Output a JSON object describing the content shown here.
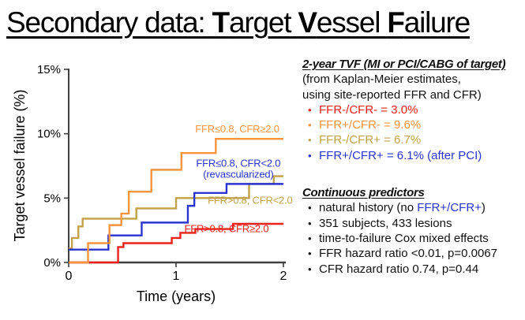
{
  "slide": {
    "title_segments": [
      {
        "text": "Secondary data: ",
        "bold": false
      },
      {
        "text": "T",
        "bold": true
      },
      {
        "text": "arget ",
        "bold": false
      },
      {
        "text": "V",
        "bold": true
      },
      {
        "text": "essel ",
        "bold": false
      },
      {
        "text": "F",
        "bold": true
      },
      {
        "text": "ailure",
        "bold": false
      }
    ]
  },
  "colors": {
    "red": "#EE2019",
    "orange": "#F7943E",
    "gold": "#C2A14B",
    "blue": "#2A34CF",
    "axis": "#3F3F3F",
    "text": "#111111"
  },
  "panel": {
    "heading1": "2-year TVF (MI or PCI/CABG of target)",
    "sub1": "(from Kaplan-Meier estimates,",
    "sub2": "using site-reported FFR and CFR)",
    "bullets1": [
      {
        "parts": [
          {
            "text": "FFR-/CFR- = 3.0%",
            "color_key": "red"
          }
        ],
        "color_key": "red"
      },
      {
        "parts": [
          {
            "text": "FFR+/CFR- = 9.6%",
            "color_key": "orange"
          }
        ],
        "color_key": "orange"
      },
      {
        "parts": [
          {
            "text": "FFR-/CFR+ = 6.7%",
            "color_key": "gold"
          }
        ],
        "color_key": "gold"
      },
      {
        "parts": [
          {
            "text": "FFR+/CFR+ = 6.1% (after PCI)",
            "color_key": "blue"
          }
        ],
        "color_key": "blue"
      }
    ],
    "heading2": "Continuous predictors",
    "bullets2": [
      {
        "parts": [
          {
            "text": "natural history (no "
          },
          {
            "text": "FFR+/CFR+",
            "color_key": "blue"
          },
          {
            "text": ")"
          }
        ]
      },
      {
        "parts": [
          {
            "text": "351 subjects, 433 lesions"
          }
        ]
      },
      {
        "parts": [
          {
            "text": "time-to-failure Cox mixed effects"
          }
        ]
      },
      {
        "parts": [
          {
            "text": "FFR hazard ratio <0.01, p=0.0067"
          }
        ]
      },
      {
        "parts": [
          {
            "text": "CFR hazard ratio 0.74, p=0.44"
          }
        ]
      }
    ]
  },
  "chart_data": {
    "type": "line",
    "subtype": "kaplan-meier-step",
    "title": "",
    "xlabel": "Time (years)",
    "ylabel": "Target vessel failure (%)",
    "xlim": [
      0,
      2
    ],
    "ylim": [
      0,
      15
    ],
    "grid": false,
    "legend_position": "inline-labels",
    "xticks": [
      {
        "v": 0,
        "label": "0"
      },
      {
        "v": 1,
        "label": "1"
      },
      {
        "v": 2,
        "label": "2"
      }
    ],
    "yticks": [
      {
        "v": 0,
        "label": "0%"
      },
      {
        "v": 5,
        "label": "5%"
      },
      {
        "v": 10,
        "label": "10%"
      },
      {
        "v": 15,
        "label": "15%"
      }
    ],
    "series": [
      {
        "id": "gold",
        "name": "FFR>0.8, CFR<2.0",
        "color_key": "gold",
        "final_value_pct": 6.7,
        "label_lines": [
          "FFR>0.8, CFR<2.0"
        ],
        "label_anchor": {
          "t": 1.69,
          "pct": 4.55
        },
        "steps": [
          [
            0,
            1.1
          ],
          [
            0.03,
            1.9
          ],
          [
            0.09,
            2.8
          ],
          [
            0.13,
            3.4
          ],
          [
            0.63,
            4.2
          ],
          [
            1.0,
            5.0
          ],
          [
            1.68,
            6.1
          ],
          [
            1.91,
            6.7
          ]
        ]
      },
      {
        "id": "red",
        "name": "FFR>0.8, CFR≥2.0",
        "color_key": "red",
        "final_value_pct": 3.0,
        "label_lines": [
          "FFR>0.8, CFR≥2.0"
        ],
        "label_anchor": {
          "t": 1.47,
          "pct": 2.35
        },
        "steps": [
          [
            0,
            0
          ],
          [
            0.46,
            1.2
          ],
          [
            0.51,
            1.5
          ],
          [
            0.96,
            1.9
          ],
          [
            1.04,
            2.3
          ],
          [
            1.18,
            2.6
          ],
          [
            1.53,
            3.0
          ]
        ]
      },
      {
        "id": "blue",
        "name": "FFR≤0.8, CFR<2.0 (revascularized)",
        "color_key": "blue",
        "final_value_pct": 6.1,
        "label_lines": [
          "FFR≤0.8, CFR<2.0",
          "(revascularized)"
        ],
        "label_anchor": {
          "t": 1.58,
          "pct": 7.45
        },
        "steps": [
          [
            0,
            1.0
          ],
          [
            0.37,
            2.1
          ],
          [
            0.68,
            3.1
          ],
          [
            1.11,
            4.4
          ],
          [
            1.17,
            5.4
          ],
          [
            1.47,
            6.1
          ]
        ]
      },
      {
        "id": "orange",
        "name": "FFR≤0.8, CFR≥2.0",
        "color_key": "orange",
        "final_value_pct": 9.6,
        "label_lines": [
          "FFR≤0.8, CFR≥2.0"
        ],
        "label_anchor": {
          "t": 1.57,
          "pct": 10.1
        },
        "steps": [
          [
            0,
            0
          ],
          [
            0.18,
            1.5
          ],
          [
            0.38,
            2.9
          ],
          [
            0.49,
            3.8
          ],
          [
            0.56,
            5.5
          ],
          [
            0.77,
            7.2
          ],
          [
            1.05,
            8.5
          ],
          [
            1.37,
            9.6
          ]
        ]
      }
    ]
  }
}
